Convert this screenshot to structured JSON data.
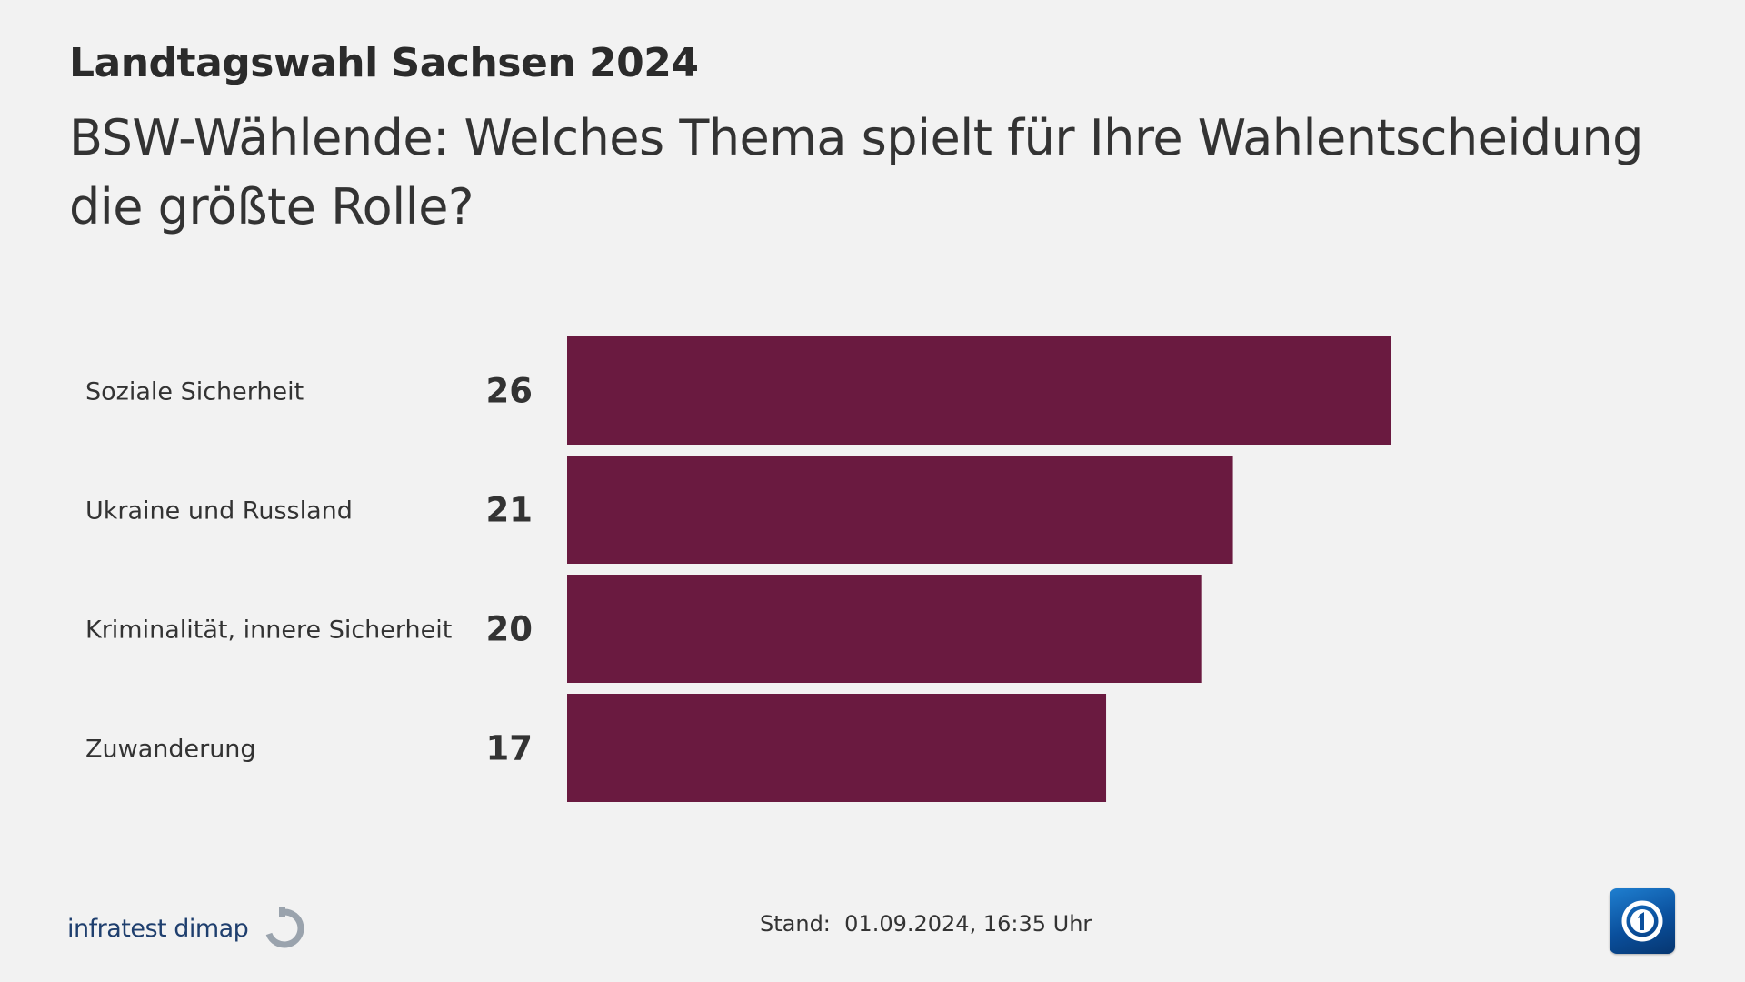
{
  "header": {
    "supertitle": "Landtagswahl Sachsen 2024",
    "title": "BSW-Wählende: Welches Thema spielt für Ihre Wahlentscheidung die größte Rolle?"
  },
  "footer": {
    "source_logo_text": "infratest dimap",
    "stand_label": "Stand:",
    "stand_value": "01.09.2024, 16:35 Uhr",
    "broadcaster_icon": "ard-das-erste-logo-icon"
  },
  "colors": {
    "bar": "#6a1a40",
    "background": "#f2f2f2",
    "text": "#333333"
  },
  "chart_data": {
    "type": "bar",
    "orientation": "horizontal",
    "categories": [
      "Soziale Sicherheit",
      "Ukraine und Russland",
      "Kriminalität, innere Sicherheit",
      "Zuwanderung"
    ],
    "values": [
      26,
      21,
      20,
      17
    ],
    "data_labels": [
      "26",
      "21",
      "20",
      "17"
    ],
    "xlim": [
      0,
      26
    ],
    "grid": false,
    "legend": "none"
  }
}
